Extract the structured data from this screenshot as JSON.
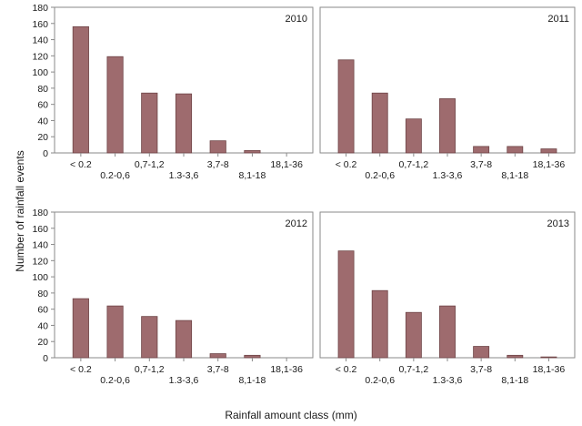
{
  "chart_data": {
    "type": "bar",
    "title": "",
    "ylabel": "Number of rainfall events",
    "xlabel": "Rainfall amount class (mm)",
    "ylim": [
      0,
      180
    ],
    "yticks": [
      0,
      20,
      40,
      60,
      80,
      100,
      120,
      140,
      160,
      180
    ],
    "categories": [
      "< 0.2",
      "0.2-0,6",
      "0,7-1,2",
      "1.3-3,6",
      "3,7-8",
      "8,1-18",
      "18,1-36"
    ],
    "bar_color": "#9e6b6e",
    "grid": false,
    "panels": [
      {
        "label": "2010",
        "values": [
          156,
          119,
          74,
          73,
          15,
          3,
          0
        ]
      },
      {
        "label": "2011",
        "values": [
          115,
          74,
          42,
          67,
          8,
          8,
          5
        ]
      },
      {
        "label": "2012",
        "values": [
          73,
          64,
          51,
          46,
          5,
          3,
          0
        ]
      },
      {
        "label": "2013",
        "values": [
          132,
          83,
          56,
          64,
          14,
          3,
          1
        ]
      }
    ]
  }
}
